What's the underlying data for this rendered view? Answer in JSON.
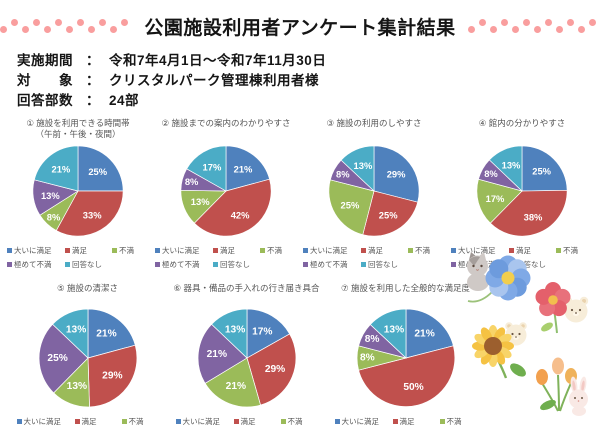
{
  "header": {
    "title": "公園施設利用者アンケート集計結果",
    "dot_color": "#F99E9E",
    "dots_per_side": 12
  },
  "info": {
    "lines": [
      {
        "label": "実施期間",
        "colon": "：",
        "value": "令和7年4月1日～令和7年11月30日"
      },
      {
        "label": "対　　象",
        "colon": "：",
        "value": "クリスタルパーク管理棟利用者様"
      },
      {
        "label": "回答部数",
        "colon": "：",
        "value": "24部"
      }
    ]
  },
  "palette": {
    "colors": [
      "#4F81BD",
      "#C0504D",
      "#9BBB59",
      "#8064A2",
      "#4BACC6"
    ],
    "legend_labels": [
      "大いに満足",
      "満足",
      "不満",
      "極めて不満",
      "回答なし"
    ]
  },
  "chart_data": [
    {
      "type": "pie",
      "title": "① 施設を利用できる時間帯",
      "subtitle": "（午前・午後・夜間）",
      "categories": [
        "大いに満足",
        "満足",
        "不満",
        "極めて不満",
        "回答なし"
      ],
      "values": [
        25,
        33,
        8,
        13,
        21
      ],
      "unit": "%",
      "colors": [
        "#4F81BD",
        "#C0504D",
        "#9BBB59",
        "#8064A2",
        "#4BACC6"
      ],
      "legend_position": "bottom",
      "labels": "inside, white, percent"
    },
    {
      "type": "pie",
      "title": "② 施設までの案内のわかりやすさ",
      "subtitle": "",
      "categories": [
        "大いに満足",
        "満足",
        "不満",
        "極めて不満",
        "回答なし"
      ],
      "values": [
        21,
        42,
        13,
        8,
        17
      ],
      "unit": "%",
      "colors": [
        "#4F81BD",
        "#C0504D",
        "#9BBB59",
        "#8064A2",
        "#4BACC6"
      ],
      "legend_position": "bottom",
      "labels": "inside, white, percent"
    },
    {
      "type": "pie",
      "title": "③ 施設の利用のしやすさ",
      "subtitle": "",
      "categories": [
        "大いに満足",
        "満足",
        "不満",
        "極めて不満",
        "回答なし"
      ],
      "values": [
        29,
        25,
        25,
        8,
        13
      ],
      "unit": "%",
      "colors": [
        "#4F81BD",
        "#C0504D",
        "#9BBB59",
        "#8064A2",
        "#4BACC6"
      ],
      "legend_position": "bottom",
      "labels": "inside, white, percent"
    },
    {
      "type": "pie",
      "title": "④ 館内の分かりやすさ",
      "subtitle": "",
      "categories": [
        "大いに満足",
        "満足",
        "不満",
        "極めて不満",
        "回答なし"
      ],
      "values": [
        25,
        38,
        17,
        8,
        13
      ],
      "unit": "%",
      "colors": [
        "#4F81BD",
        "#C0504D",
        "#9BBB59",
        "#8064A2",
        "#4BACC6"
      ],
      "legend_position": "bottom",
      "labels": "inside, white, percent"
    },
    {
      "type": "pie",
      "title": "⑤ 施設の清潔さ",
      "subtitle": "",
      "categories": [
        "大いに満足",
        "満足",
        "不満",
        "極めて不満",
        "回答なし"
      ],
      "values": [
        21,
        29,
        13,
        25,
        13
      ],
      "unit": "%",
      "colors": [
        "#4F81BD",
        "#C0504D",
        "#9BBB59",
        "#8064A2",
        "#4BACC6"
      ],
      "legend_position": "bottom",
      "labels": "inside, white, percent"
    },
    {
      "type": "pie",
      "title": "⑥ 器具・備品の手入れの行き届き具合",
      "subtitle": "",
      "categories": [
        "大いに満足",
        "満足",
        "不満",
        "極めて不満",
        "回答なし"
      ],
      "values": [
        17,
        29,
        21,
        21,
        13
      ],
      "unit": "%",
      "colors": [
        "#4F81BD",
        "#C0504D",
        "#9BBB59",
        "#8064A2",
        "#4BACC6"
      ],
      "legend_position": "bottom",
      "labels": "inside, white, percent"
    },
    {
      "type": "pie",
      "title": "⑦ 施設を利用した全般的な満足度",
      "subtitle": "",
      "categories": [
        "大いに満足",
        "満足",
        "不満",
        "極めて不満",
        "回答なし"
      ],
      "values": [
        21,
        50,
        8,
        8,
        13
      ],
      "unit": "%",
      "colors": [
        "#4F81BD",
        "#C0504D",
        "#9BBB59",
        "#8064A2",
        "#4BACC6"
      ],
      "legend_position": "bottom",
      "labels": "inside, white, percent"
    }
  ],
  "decorations": [
    "cat-with-blue-flower-illustration",
    "bear-with-pink-flower-illustration",
    "bear-with-sunflower-illustration",
    "bunny-with-tulips-illustration"
  ]
}
